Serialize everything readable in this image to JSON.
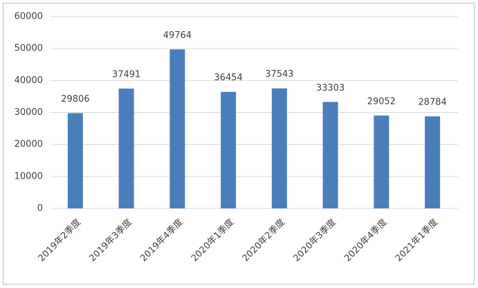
{
  "chart_data": {
    "type": "bar",
    "categories": [
      "2019年2季度",
      "2019年3季度",
      "2019年4季度",
      "2020年1季度",
      "2020年2季度",
      "2020年3季度",
      "2020年4季度",
      "2021年1季度"
    ],
    "values": [
      29806,
      37491,
      49764,
      36454,
      37543,
      33303,
      29052,
      28784
    ],
    "color": "#4a7ebb",
    "ylim": [
      0,
      60000
    ],
    "yticks": [
      0,
      10000,
      20000,
      30000,
      40000,
      50000,
      60000
    ],
    "grid": true
  }
}
